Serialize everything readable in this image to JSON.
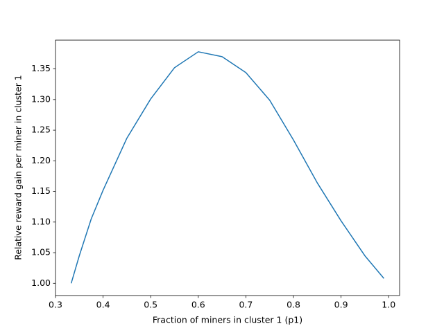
{
  "chart_data": {
    "type": "line",
    "xlabel": "Fraction of miners in cluster 1 (p1)",
    "ylabel": "Relative reward gain per miner in cluster 1",
    "x": [
      0.333,
      0.35,
      0.375,
      0.4,
      0.45,
      0.5,
      0.55,
      0.6,
      0.65,
      0.7,
      0.75,
      0.8,
      0.85,
      0.9,
      0.95,
      0.99
    ],
    "values": [
      1.0,
      1.045,
      1.105,
      1.152,
      1.237,
      1.301,
      1.352,
      1.378,
      1.37,
      1.344,
      1.299,
      1.234,
      1.164,
      1.102,
      1.045,
      1.008
    ],
    "color": "#1f77b4",
    "xlim": [
      0.3,
      1.023
    ],
    "ylim": [
      0.98,
      1.397
    ],
    "xticks": [
      0.3,
      0.4,
      0.5,
      0.6,
      0.7,
      0.8,
      0.9,
      {
        "value": 1,
        "label": "1.0"
      }
    ],
    "yticks": [
      {
        "value": 1,
        "label": "1.00"
      },
      {
        "value": 1.05,
        "label": "1.05"
      },
      {
        "value": 1.1,
        "label": "1.10"
      },
      {
        "value": 1.15,
        "label": "1.15"
      },
      {
        "value": 1.2,
        "label": "1.20"
      },
      {
        "value": 1.25,
        "label": "1.25"
      },
      {
        "value": 1.3,
        "label": "1.30"
      },
      {
        "value": 1.35,
        "label": "1.35"
      }
    ]
  }
}
